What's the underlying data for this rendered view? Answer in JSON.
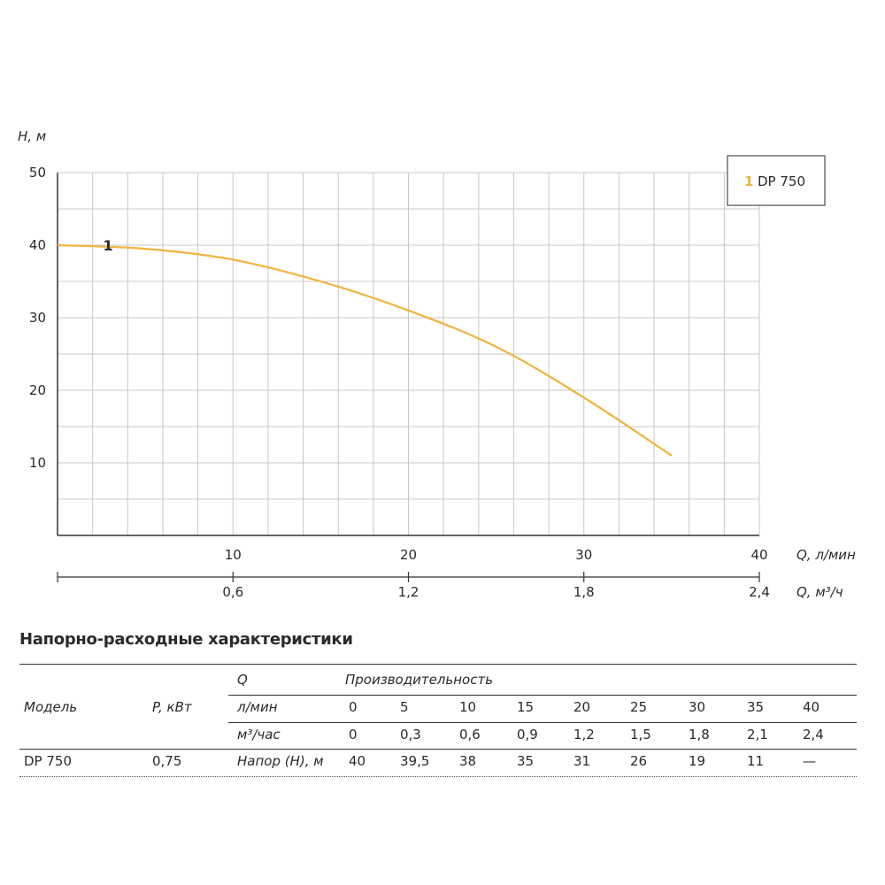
{
  "chart_data": {
    "type": "line",
    "ylabel": "H, м",
    "xlabel": "Q, л/мин",
    "xlabel2": "Q, м³/ч",
    "ylim": [
      0,
      50
    ],
    "xlim": [
      0,
      40
    ],
    "yticks": [
      "10",
      "20",
      "30",
      "40",
      "50"
    ],
    "xticks": [
      "10",
      "20",
      "30",
      "40"
    ],
    "xticks2": [
      "0,6",
      "1,2",
      "1,8",
      "2,4"
    ],
    "grid": true,
    "legend": {
      "position": "top-right",
      "number": "1",
      "label": "DP 750"
    },
    "series": [
      {
        "name": "DP 750",
        "marker_label": "1",
        "color": "#f0b33c",
        "x": [
          0,
          5,
          10,
          15,
          20,
          25,
          30,
          35
        ],
        "y": [
          40,
          39.5,
          38,
          35,
          31,
          26,
          19,
          11
        ]
      }
    ]
  },
  "table": {
    "title": "Напорно-расходные характеристики",
    "model_header": "Модель",
    "power_header": "P, кВт",
    "q_header": "Q",
    "performance_header": "Производительность",
    "lmin_label": "л/мин",
    "m3_label": "м³/час",
    "head_label": "Напор (H), м",
    "lmin_values": [
      "0",
      "5",
      "10",
      "15",
      "20",
      "25",
      "30",
      "35",
      "40"
    ],
    "m3_values": [
      "0",
      "0,3",
      "0,6",
      "0,9",
      "1,2",
      "1,5",
      "1,8",
      "2,1",
      "2,4"
    ],
    "rows": [
      {
        "model": "DP 750",
        "power": "0,75",
        "head_values": [
          "40",
          "39,5",
          "38",
          "35",
          "31",
          "26",
          "19",
          "11",
          "—"
        ]
      }
    ]
  }
}
